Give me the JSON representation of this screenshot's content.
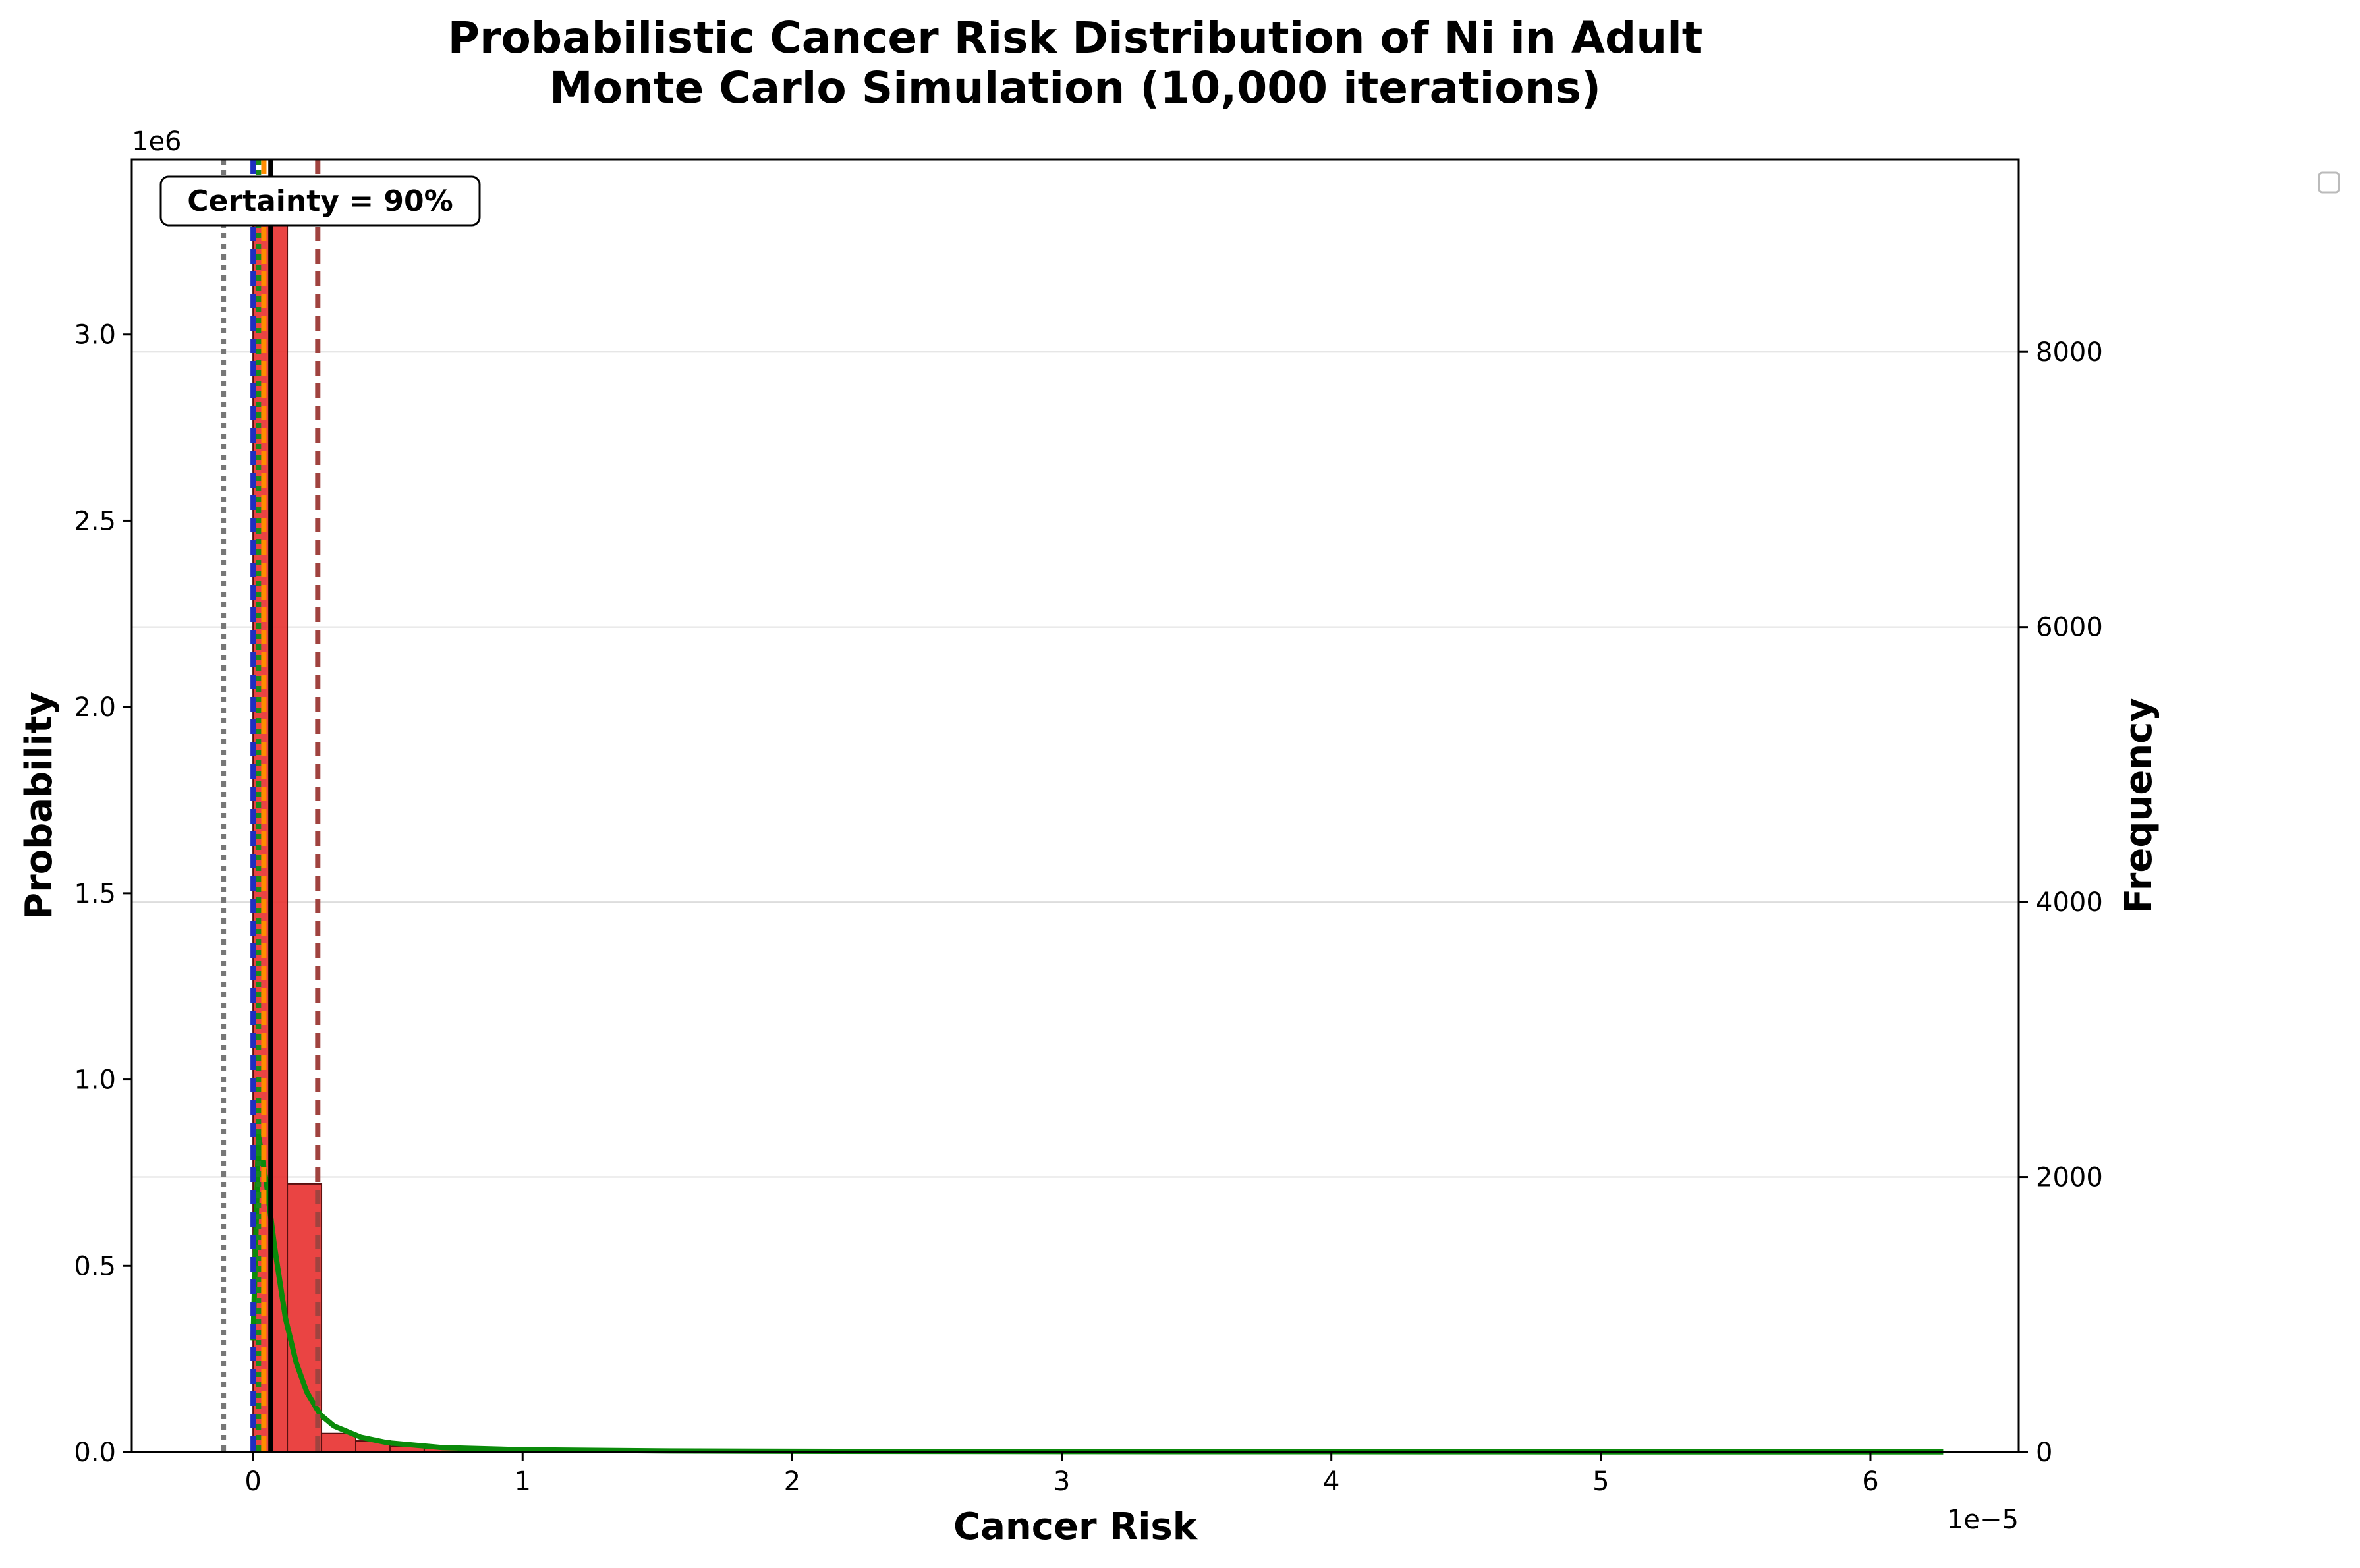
{
  "chart_data": {
    "type": "bar",
    "title_lines": [
      "Probabilistic Cancer Risk Distribution of Ni in Adult",
      "Monte Carlo Simulation (10,000 iterations)"
    ],
    "xlabel": "Cancer Risk",
    "ylabel": "Probability",
    "ylabel_right": "Frequency",
    "x_offset_label": "1e−5",
    "y_offset_label": "1e6",
    "xlim": [
      -0.45,
      6.55
    ],
    "ylim": [
      0,
      3.47
    ],
    "ylim_right": [
      0,
      9400
    ],
    "x_ticks": [
      0,
      1,
      2,
      3,
      4,
      5,
      6
    ],
    "y_ticks": [
      0.0,
      0.5,
      1.0,
      1.5,
      2.0,
      2.5,
      3.0
    ],
    "y_tick_labels": [
      "0.0",
      "0.5",
      "1.0",
      "1.5",
      "2.0",
      "2.5",
      "3.0"
    ],
    "y_right_ticks": [
      0,
      2000,
      4000,
      6000,
      8000
    ],
    "y_right_tick_labels": [
      "0",
      "2000",
      "4000",
      "6000",
      "8000"
    ],
    "grid": "horizontal, right axis",
    "legend_placement": "outside top-right (empty)",
    "annotation": "Certainty = 90%",
    "histogram": {
      "bin_width": 0.127,
      "bin_starts": [
        0.0,
        0.127,
        0.254,
        0.381,
        0.508,
        0.635,
        0.762,
        0.889,
        1.016,
        1.143,
        1.27,
        1.397
      ],
      "probability": [
        3.35,
        0.72,
        0.05,
        0.03,
        0.015,
        0.01,
        0.008,
        0.006,
        0.004,
        0.003,
        0.002,
        0.002
      ],
      "frequency": [
        9150,
        1960,
        130,
        80,
        40,
        28,
        20,
        15,
        10,
        8,
        6,
        5
      ],
      "color": "#e8302f"
    },
    "kde_line": {
      "color": "#0a8a0a",
      "x": [
        0.0,
        0.02,
        0.05,
        0.08,
        0.12,
        0.16,
        0.2,
        0.25,
        0.3,
        0.4,
        0.5,
        0.7,
        1.0,
        1.5,
        2.0,
        3.0,
        4.0,
        5.0,
        6.27
      ],
      "y": [
        0.3,
        0.85,
        0.72,
        0.55,
        0.36,
        0.24,
        0.16,
        0.1,
        0.07,
        0.04,
        0.025,
        0.012,
        0.006,
        0.003,
        0.002,
        0.001,
        0.0008,
        0.0005,
        0.0003
      ]
    },
    "vertical_lines": [
      {
        "name": "lower-bound-dotted",
        "x": -0.11,
        "color": "#777777",
        "style": "dotted"
      },
      {
        "name": "blue-dashed",
        "x": 0.0,
        "color": "#1f2ebf",
        "style": "dashed"
      },
      {
        "name": "green-dotted",
        "x": 0.02,
        "color": "#1a8a1a",
        "style": "dotted"
      },
      {
        "name": "orange-dashed",
        "x": 0.04,
        "color": "#ff8c00",
        "style": "dashed"
      },
      {
        "name": "black-solid",
        "x": 0.065,
        "color": "#000000",
        "style": "solid"
      },
      {
        "name": "brown-dashed",
        "x": 0.24,
        "color": "#a0433f",
        "style": "dashed"
      }
    ]
  }
}
